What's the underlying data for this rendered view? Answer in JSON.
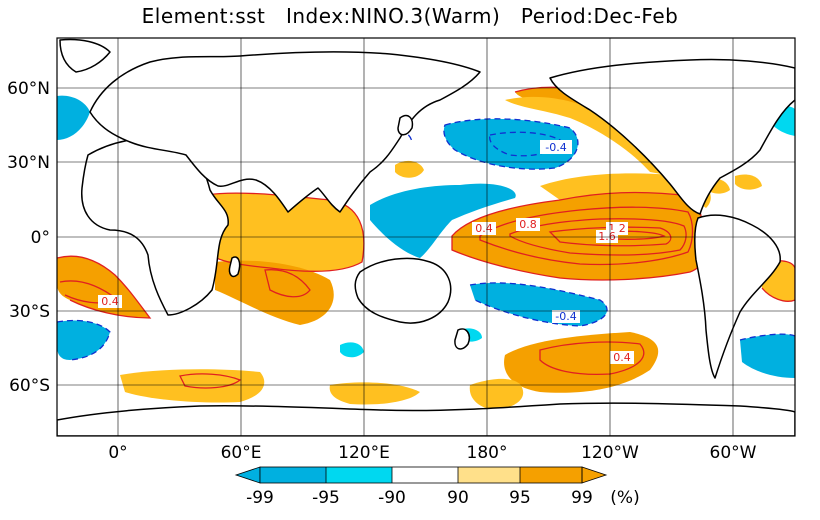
{
  "title": {
    "element": "Element:sst",
    "index": "Index:NINO.3(Warm)",
    "period": "Period:Dec-Feb"
  },
  "axes": {
    "lat_ticks": [
      "60°N",
      "30°N",
      "0°",
      "30°S",
      "60°S"
    ],
    "lon_ticks": [
      "0°",
      "60°E",
      "120°E",
      "180°",
      "120°W",
      "60°W"
    ]
  },
  "contour_labels": [
    "-0.4",
    "-0.4",
    "0.4",
    "0.8",
    "1.2",
    "1.6",
    "0.4",
    "0.4"
  ],
  "colorbar": {
    "ticks": [
      "-99",
      "-95",
      "-90",
      "90",
      "95",
      "99"
    ],
    "unit": "(%)",
    "colors": {
      "neg99": "#00b0e0",
      "neg95": "#00d8f0",
      "neg90": "#a0f0f8",
      "pos90": "#ffe08a",
      "pos95": "#ffc020",
      "pos99": "#f5a000"
    }
  },
  "colors": {
    "land": "#ffffff",
    "coast": "#000000",
    "pos_contour": "#e02020",
    "neg_contour": "#1030d0",
    "grid": "#000000"
  }
}
